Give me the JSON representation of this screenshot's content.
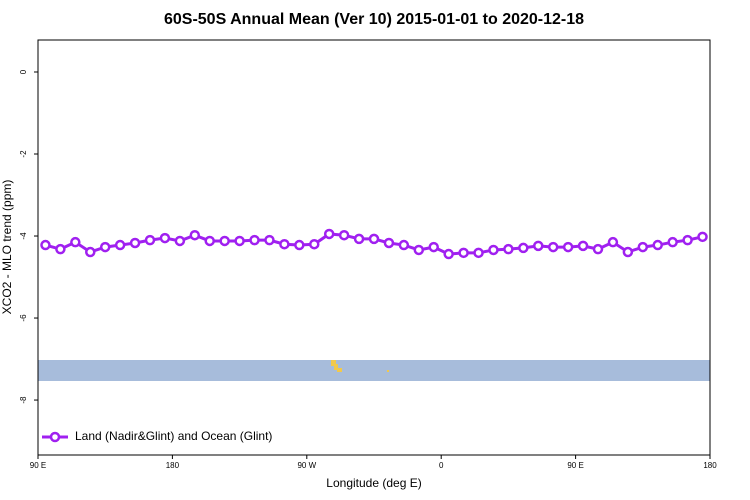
{
  "chart_data": {
    "type": "line",
    "title": "60S-50S Annual Mean (Ver 10)   2015-01-01 to 2020-12-18",
    "x_label": "Longitude (deg E)",
    "y_label": "XCO2 - MLO trend (ppm)",
    "xlim": [
      90,
      540
    ],
    "xticks": [
      {
        "value": 90,
        "label": "90 E"
      },
      180,
      {
        "value": 270,
        "label": "90 W"
      },
      {
        "value": 360,
        "label": "0"
      },
      {
        "value": 450,
        "label": "90 E"
      },
      {
        "value": 540,
        "label": "180"
      }
    ],
    "ylim": [
      -9.34,
      0.78
    ],
    "yticks": [
      0,
      -2,
      -4,
      -6,
      -8
    ],
    "legend": "bottom-left",
    "x": [
      95,
      105,
      115,
      125,
      135,
      145,
      155,
      165,
      175,
      185,
      195,
      205,
      215,
      225,
      235,
      245,
      255,
      265,
      275,
      285,
      295,
      305,
      315,
      325,
      335,
      345,
      355,
      365,
      375,
      385,
      395,
      405,
      415,
      425,
      435,
      445,
      455,
      465,
      475,
      485,
      495,
      505,
      515,
      525,
      535
    ],
    "series": [
      {
        "name": "Land (Nadir&Glint) and Ocean (Glint)",
        "color": "#a020f0",
        "values": [
          -4.22,
          -4.32,
          -4.15,
          -4.39,
          -4.27,
          -4.22,
          -4.17,
          -4.1,
          -4.05,
          -4.12,
          -3.98,
          -4.12,
          -4.12,
          -4.12,
          -4.1,
          -4.1,
          -4.2,
          -4.22,
          -4.2,
          -3.95,
          -3.98,
          -4.07,
          -4.07,
          -4.17,
          -4.22,
          -4.34,
          -4.27,
          -4.44,
          -4.41,
          -4.41,
          -4.34,
          -4.32,
          -4.29,
          -4.24,
          -4.27,
          -4.27,
          -4.24,
          -4.32,
          -4.15,
          -4.39,
          -4.27,
          -4.22,
          -4.15,
          -4.1,
          -4.02
        ]
      }
    ]
  }
}
